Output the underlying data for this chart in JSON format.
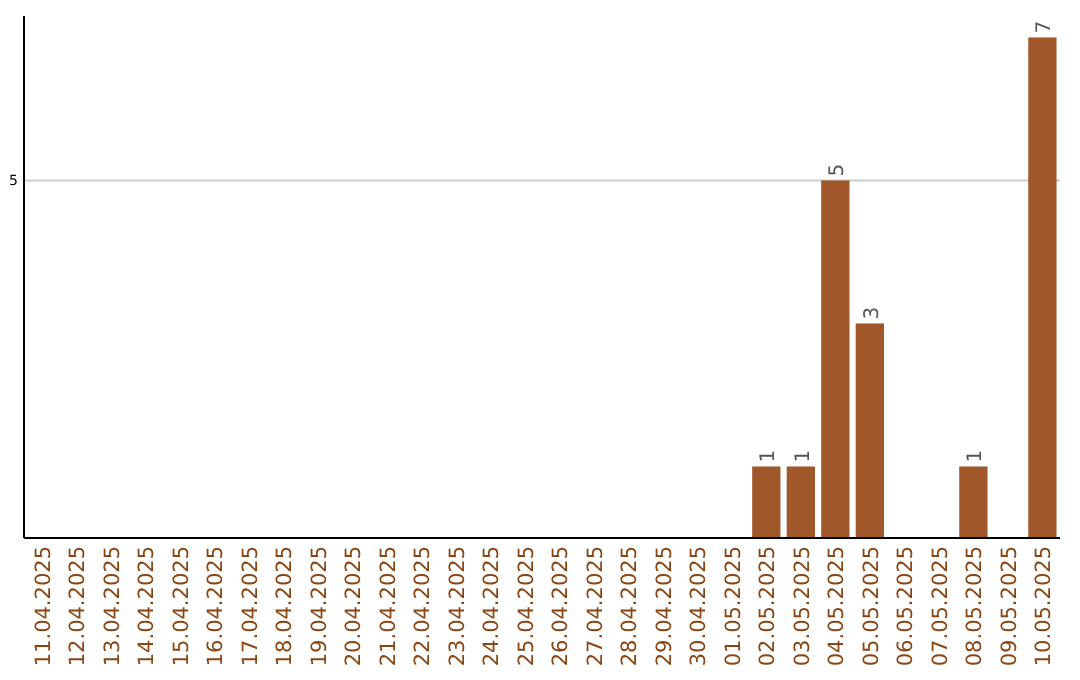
{
  "chart_data": {
    "type": "bar",
    "categories": [
      "11.04.2025",
      "12.04.2025",
      "13.04.2025",
      "14.04.2025",
      "15.04.2025",
      "16.04.2025",
      "17.04.2025",
      "18.04.2025",
      "19.04.2025",
      "20.04.2025",
      "21.04.2025",
      "22.04.2025",
      "23.04.2025",
      "24.04.2025",
      "25.04.2025",
      "26.04.2025",
      "27.04.2025",
      "28.04.2025",
      "29.04.2025",
      "30.04.2025",
      "01.05.2025",
      "02.05.2025",
      "03.05.2025",
      "04.05.2025",
      "05.05.2025",
      "06.05.2025",
      "07.05.2025",
      "08.05.2025",
      "09.05.2025",
      "10.05.2025"
    ],
    "values": [
      null,
      null,
      null,
      null,
      null,
      null,
      null,
      null,
      null,
      null,
      null,
      null,
      null,
      null,
      null,
      null,
      null,
      null,
      null,
      null,
      null,
      1,
      1,
      5,
      3,
      null,
      null,
      1,
      null,
      7
    ],
    "value_labels": [
      null,
      null,
      null,
      null,
      null,
      null,
      null,
      null,
      null,
      null,
      null,
      null,
      null,
      null,
      null,
      null,
      null,
      null,
      null,
      null,
      null,
      "1",
      "1",
      "5",
      "3",
      null,
      null,
      "1",
      null,
      "7"
    ],
    "color": "#a0582a",
    "ylim": [
      0,
      7.3
    ],
    "ref_lines": [
      {
        "axis": "y",
        "value": 5,
        "label": "5",
        "color": "#cccccc"
      }
    ]
  }
}
